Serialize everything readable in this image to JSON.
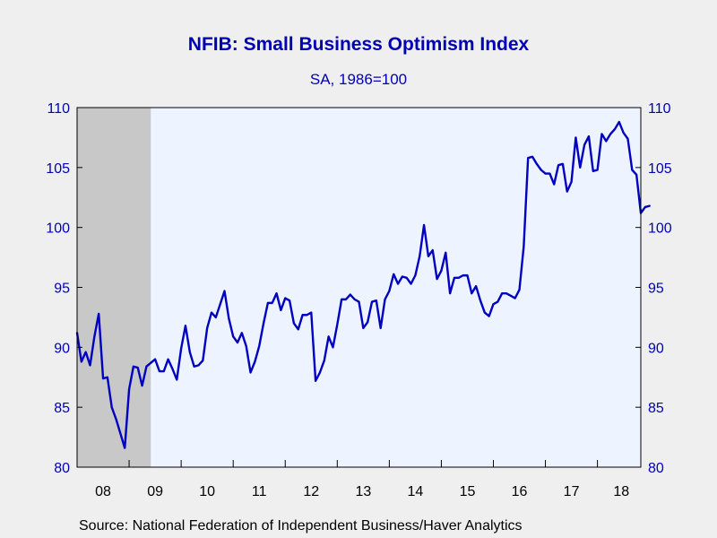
{
  "title": "NFIB: Small Business Optimism Index",
  "subtitle": "SA, 1986=100",
  "source": "Source:  National Federation of Independent Business/Haver Analytics",
  "colors": {
    "line": "#0000c0",
    "plot_bg": "#eef4ff",
    "recession": "#c8c8c8",
    "axis_text": "#0000b4"
  },
  "chart_data": {
    "type": "line",
    "title": "NFIB: Small Business Optimism Index",
    "subtitle": "SA, 1986=100",
    "xlabel": "",
    "ylabel": "",
    "ylim": [
      80,
      110
    ],
    "xlim": [
      "2008-01",
      "2018-11"
    ],
    "y_ticks": [
      80,
      85,
      90,
      95,
      100,
      105,
      110
    ],
    "x_tick_labels": [
      "08",
      "09",
      "10",
      "11",
      "12",
      "13",
      "14",
      "15",
      "16",
      "17",
      "18"
    ],
    "y_axis_both_sides": true,
    "grid": false,
    "shaded_periods": [
      {
        "start": "2008-01",
        "end": "2009-06",
        "meaning": "recession"
      }
    ],
    "series": [
      {
        "frequency": "monthly",
        "start": "2008-01",
        "values": [
          91.2,
          88.8,
          89.6,
          88.5,
          90.9,
          92.8,
          87.4,
          87.5,
          85.0,
          84.0,
          82.8,
          81.6,
          86.5,
          88.4,
          88.3,
          86.8,
          88.4,
          88.7,
          89.0,
          88.0,
          88.0,
          89.0,
          88.2,
          87.3,
          89.9,
          91.8,
          89.6,
          88.4,
          88.5,
          88.9,
          91.6,
          92.9,
          92.5,
          93.6,
          94.7,
          92.4,
          90.9,
          90.4,
          91.2,
          90.1,
          87.9,
          88.8,
          90.1,
          92.0,
          93.7,
          93.7,
          94.5,
          93.1,
          94.1,
          93.9,
          92.0,
          91.5,
          92.7,
          92.7,
          92.9,
          87.2,
          87.9,
          88.9,
          90.9,
          90.0,
          91.9,
          94.0,
          94.0,
          94.4,
          94.0,
          93.8,
          91.6,
          92.1,
          93.8,
          93.9,
          91.6,
          94.0,
          94.7,
          96.1,
          95.3,
          95.9,
          95.8,
          95.3,
          96.0,
          97.6,
          100.2,
          97.6,
          98.1,
          95.7,
          96.4,
          97.9,
          94.5,
          95.8,
          95.8,
          96.0,
          96.0,
          94.5,
          95.1,
          93.9,
          92.9,
          92.6,
          93.6,
          93.8,
          94.5,
          94.5,
          94.3,
          94.1,
          94.8,
          98.4,
          105.8,
          105.9,
          105.3,
          104.8,
          104.5,
          104.5,
          103.6,
          105.2,
          105.3,
          103.0,
          103.8,
          107.5,
          105.0,
          106.9,
          107.6,
          104.7,
          104.8,
          107.8,
          107.2,
          107.8,
          108.2,
          108.8,
          107.9,
          107.4,
          104.8,
          104.4,
          101.2,
          101.7,
          101.8
        ]
      }
    ]
  }
}
